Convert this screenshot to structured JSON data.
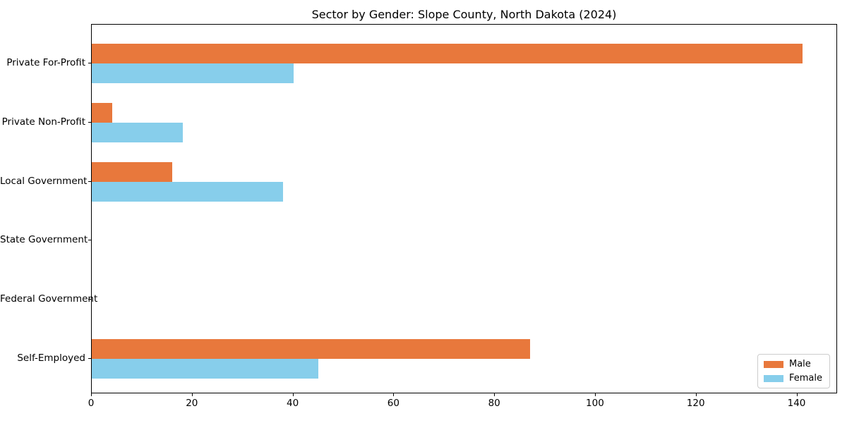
{
  "chart_data": {
    "type": "bar",
    "orientation": "horizontal",
    "title": "Sector by Gender: Slope County, North Dakota (2024)",
    "categories": [
      "Private For-Profit",
      "Private Non-Profit",
      "Local Government",
      "State Government",
      "Federal Government",
      "Self-Employed"
    ],
    "series": [
      {
        "name": "Male",
        "color": "#E8783C",
        "values": [
          141,
          4,
          16,
          0,
          0,
          87
        ]
      },
      {
        "name": "Female",
        "color": "#87CEEB",
        "values": [
          40,
          18,
          38,
          0,
          0,
          45
        ]
      }
    ],
    "xlabel": "",
    "ylabel": "",
    "x_ticks": [
      0,
      20,
      40,
      60,
      80,
      100,
      120,
      140
    ],
    "xlim": [
      0,
      148.05
    ],
    "grid": false,
    "legend_position": "lower right",
    "background_color": "#ffffff",
    "axis_color": "#000000"
  }
}
